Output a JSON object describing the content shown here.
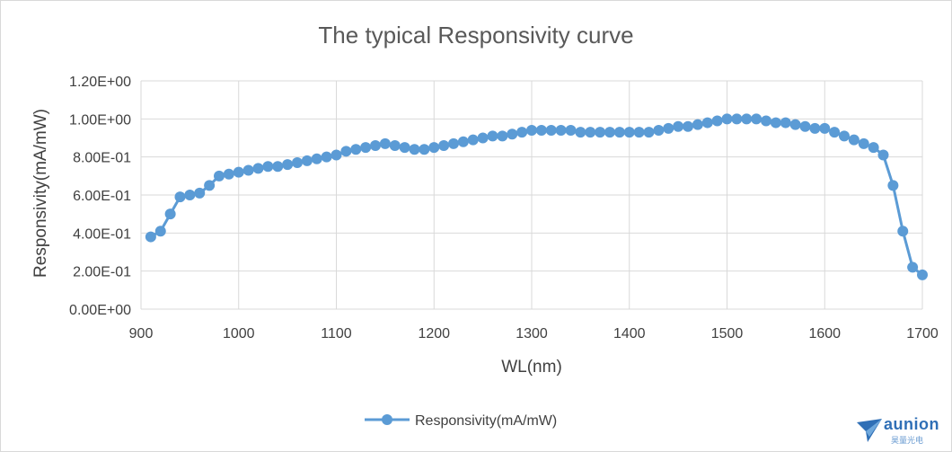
{
  "chart_data": {
    "type": "line",
    "title": "The typical Responsivity curve",
    "xlabel": "WL(nm)",
    "ylabel": "Responsivity(mA/mW)",
    "xlim": [
      900,
      1700
    ],
    "ylim": [
      0,
      1.2
    ],
    "x_ticks": [
      900,
      1000,
      1100,
      1200,
      1300,
      1400,
      1500,
      1600,
      1700
    ],
    "x_tick_labels": [
      "900",
      "1000",
      "1100",
      "1200",
      "1300",
      "1400",
      "1500",
      "1600",
      "1700"
    ],
    "y_ticks": [
      0,
      0.2,
      0.4,
      0.6,
      0.8,
      1.0,
      1.2
    ],
    "y_tick_labels": [
      "0.00E+00",
      "2.00E-01",
      "4.00E-01",
      "6.00E-01",
      "8.00E-01",
      "1.00E+00",
      "1.20E+00"
    ],
    "grid": "major gridlines on both axes",
    "legend_position": "bottom",
    "series": [
      {
        "name": "Responsivity(mA/mW)",
        "color": "#5b9bd5",
        "x": [
          910,
          920,
          930,
          940,
          950,
          960,
          970,
          980,
          990,
          1000,
          1010,
          1020,
          1030,
          1040,
          1050,
          1060,
          1070,
          1080,
          1090,
          1100,
          1110,
          1120,
          1130,
          1140,
          1150,
          1160,
          1170,
          1180,
          1190,
          1200,
          1210,
          1220,
          1230,
          1240,
          1250,
          1260,
          1270,
          1280,
          1290,
          1300,
          1310,
          1320,
          1330,
          1340,
          1350,
          1360,
          1370,
          1380,
          1390,
          1400,
          1410,
          1420,
          1430,
          1440,
          1450,
          1460,
          1470,
          1480,
          1490,
          1500,
          1510,
          1520,
          1530,
          1540,
          1550,
          1560,
          1570,
          1580,
          1590,
          1600,
          1610,
          1620,
          1630,
          1640,
          1650,
          1660,
          1670,
          1680,
          1690,
          1700
        ],
        "values": [
          0.38,
          0.41,
          0.5,
          0.59,
          0.6,
          0.61,
          0.65,
          0.7,
          0.71,
          0.72,
          0.73,
          0.74,
          0.75,
          0.75,
          0.76,
          0.77,
          0.78,
          0.79,
          0.8,
          0.81,
          0.83,
          0.84,
          0.85,
          0.86,
          0.87,
          0.86,
          0.85,
          0.84,
          0.84,
          0.85,
          0.86,
          0.87,
          0.88,
          0.89,
          0.9,
          0.91,
          0.91,
          0.92,
          0.93,
          0.94,
          0.94,
          0.94,
          0.94,
          0.94,
          0.93,
          0.93,
          0.93,
          0.93,
          0.93,
          0.93,
          0.93,
          0.93,
          0.94,
          0.95,
          0.96,
          0.96,
          0.97,
          0.98,
          0.99,
          1.0,
          1.0,
          1.0,
          1.0,
          0.99,
          0.98,
          0.98,
          0.97,
          0.96,
          0.95,
          0.95,
          0.93,
          0.91,
          0.89,
          0.87,
          0.85,
          0.81,
          0.65,
          0.41,
          0.22,
          0.18
        ]
      }
    ]
  },
  "logo": {
    "name": "aunion",
    "sub": "昊量光电"
  }
}
